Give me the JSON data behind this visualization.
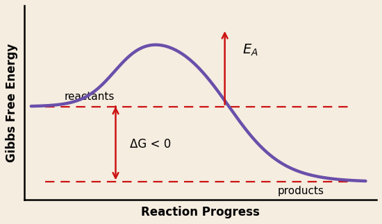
{
  "background_color": "#f5ede0",
  "curve_color": "#6a4faa",
  "curve_linewidth": 3.2,
  "dashed_color": "#cc1111",
  "arrow_color": "#cc1111",
  "reactant_level": 0.52,
  "product_level": 0.1,
  "peak_level": 0.95,
  "xlabel": "Reaction Progress",
  "ylabel": "Gibbs Free Energy",
  "label_reactants": "reactants",
  "label_products": "products",
  "label_deltaG": "ΔG < 0",
  "label_fontsize": 11,
  "axis_label_fontsize": 12,
  "annot_fontsize": 12
}
